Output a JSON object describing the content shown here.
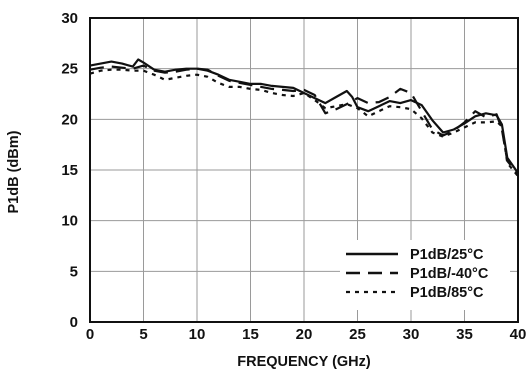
{
  "chart_data": {
    "type": "line",
    "title": "",
    "xlabel": "FREQUENCY (GHz)",
    "ylabel": "P1dB (dBm)",
    "xlim": [
      0,
      40
    ],
    "ylim": [
      0,
      30
    ],
    "xticks": [
      0,
      5,
      10,
      15,
      20,
      25,
      30,
      35,
      40
    ],
    "yticks": [
      0,
      5,
      10,
      15,
      20,
      25,
      30
    ],
    "grid": true,
    "legend_position": "bottom-right",
    "series": [
      {
        "name": "P1dB/25°C",
        "line_style": "solid",
        "color": "#111111",
        "x": [
          0,
          1,
          2,
          3,
          4,
          4.5,
          5,
          6,
          7,
          8,
          9,
          10,
          11,
          12,
          13,
          14,
          15,
          16,
          17,
          18,
          19,
          20,
          21,
          22,
          23,
          24,
          24.5,
          25,
          26,
          27,
          28,
          29,
          30,
          31,
          32,
          33,
          34,
          35,
          36,
          37,
          38,
          38.5,
          39,
          40
        ],
        "y": [
          25.3,
          25.5,
          25.7,
          25.5,
          25.2,
          25.9,
          25.6,
          24.9,
          24.7,
          24.9,
          25.0,
          25.0,
          24.8,
          24.4,
          23.9,
          23.7,
          23.5,
          23.5,
          23.3,
          23.2,
          23.1,
          22.6,
          22.1,
          21.6,
          22.2,
          22.8,
          22.2,
          21.2,
          20.8,
          21.3,
          21.8,
          21.6,
          21.9,
          21.4,
          19.9,
          18.7,
          19.0,
          19.6,
          20.3,
          20.6,
          20.4,
          19.5,
          16.2,
          14.7
        ]
      },
      {
        "name": "P1dB/-40°C",
        "line_style": "dashed",
        "color": "#111111",
        "x": [
          0,
          1,
          2,
          3,
          4,
          5,
          6,
          7,
          8,
          9,
          10,
          11,
          12,
          13,
          14,
          15,
          16,
          17,
          18,
          19,
          20,
          21,
          22,
          23,
          24,
          25,
          26,
          27,
          28,
          29,
          30,
          31,
          32,
          33,
          34,
          35,
          36,
          37,
          38,
          38.5,
          39,
          40
        ],
        "y": [
          24.9,
          25.1,
          25.2,
          25.1,
          25.0,
          25.3,
          24.8,
          24.6,
          24.7,
          24.9,
          25.0,
          24.9,
          24.3,
          23.8,
          23.6,
          23.4,
          23.2,
          23.0,
          22.9,
          22.8,
          22.9,
          22.4,
          20.6,
          21.0,
          21.5,
          22.1,
          21.6,
          21.7,
          22.2,
          23.0,
          22.6,
          20.8,
          19.0,
          18.4,
          18.9,
          19.7,
          20.8,
          20.2,
          20.5,
          19.0,
          15.9,
          14.6
        ]
      },
      {
        "name": "P1dB/85°C",
        "line_style": "dotted",
        "color": "#111111",
        "x": [
          0,
          1,
          2,
          3,
          4,
          5,
          6,
          7,
          8,
          9,
          10,
          11,
          12,
          13,
          14,
          15,
          16,
          17,
          18,
          19,
          20,
          21,
          22,
          23,
          24,
          25,
          26,
          27,
          28,
          29,
          30,
          31,
          32,
          33,
          34,
          35,
          36,
          37,
          38,
          38.5,
          39,
          40
        ],
        "y": [
          24.5,
          24.8,
          24.9,
          24.9,
          24.8,
          24.8,
          24.4,
          23.9,
          24.1,
          24.3,
          24.4,
          24.2,
          23.6,
          23.2,
          23.2,
          23.0,
          22.9,
          22.6,
          22.4,
          22.3,
          22.6,
          21.9,
          21.1,
          21.3,
          21.5,
          21.1,
          20.3,
          20.8,
          21.3,
          21.2,
          21.0,
          20.1,
          18.7,
          18.3,
          18.7,
          19.2,
          19.7,
          19.7,
          19.8,
          19.3,
          15.7,
          14.4
        ]
      }
    ]
  }
}
